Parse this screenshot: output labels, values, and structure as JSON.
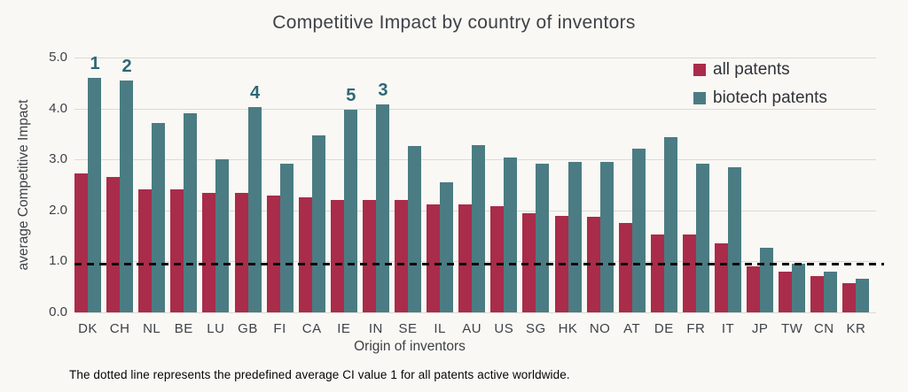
{
  "title": "Competitive Impact by country of inventors",
  "footer_note": "The dotted line represents the predefined average CI value 1 for all patents active worldwide.",
  "colors": {
    "all_patents": "#a92c4a",
    "biotech_patents": "#4b7c83",
    "annotation": "#2d6777",
    "gridline": "#dcdad4",
    "axis_text": "#3d4247",
    "background": "#faf8f4",
    "reference_line": "#0b0b0b"
  },
  "legend": {
    "items": [
      {
        "label": "all patents",
        "color": "#a92c4a"
      },
      {
        "label": "biotech patents",
        "color": "#4b7c83"
      }
    ]
  },
  "chart_data": {
    "type": "bar",
    "title": "Competitive Impact by country of inventors",
    "xlabel": "Origin of inventors",
    "ylabel": "average Competitive Impact",
    "ylim": [
      0,
      5
    ],
    "ytick_labels": [
      "0.0",
      "1.0",
      "2.0",
      "3.0",
      "4.0",
      "5.0"
    ],
    "grid": true,
    "legend_position": "top-right-inside",
    "categories": [
      "DK",
      "CH",
      "NL",
      "BE",
      "LU",
      "GB",
      "FI",
      "CA",
      "IE",
      "IN",
      "SE",
      "IL",
      "AU",
      "US",
      "SG",
      "HK",
      "NO",
      "AT",
      "DE",
      "FR",
      "IT",
      "JP",
      "TW",
      "CN",
      "KR"
    ],
    "series": [
      {
        "name": "all patents",
        "color": "#a92c4a",
        "values": [
          2.73,
          2.65,
          2.42,
          2.42,
          2.35,
          2.35,
          2.3,
          2.26,
          2.21,
          2.21,
          2.21,
          2.12,
          2.12,
          2.08,
          1.95,
          1.89,
          1.87,
          1.75,
          1.53,
          1.52,
          1.36,
          0.9,
          0.8,
          0.71,
          0.58
        ]
      },
      {
        "name": "biotech patents",
        "color": "#4b7c83",
        "values": [
          4.6,
          4.55,
          3.72,
          3.91,
          3.0,
          4.02,
          2.91,
          3.47,
          3.97,
          4.08,
          3.26,
          2.55,
          3.28,
          3.03,
          2.92,
          2.96,
          2.96,
          3.21,
          3.44,
          2.92,
          2.85,
          1.26,
          0.95,
          0.8,
          0.66
        ]
      }
    ],
    "annotations": [
      {
        "category": "DK",
        "series": "biotech patents",
        "text": "1"
      },
      {
        "category": "CH",
        "series": "biotech patents",
        "text": "2"
      },
      {
        "category": "IN",
        "series": "biotech patents",
        "text": "3"
      },
      {
        "category": "GB",
        "series": "biotech patents",
        "text": "4"
      },
      {
        "category": "IE",
        "series": "biotech patents",
        "text": "5"
      }
    ],
    "reference_line": {
      "value": 1,
      "style": "dashed",
      "meaning_text_shown_in_footer": "average CI value 1"
    }
  }
}
